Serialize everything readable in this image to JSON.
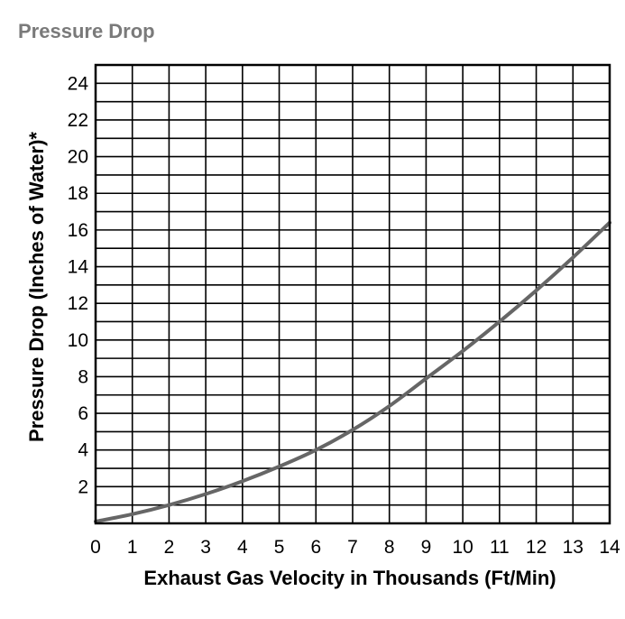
{
  "page": {
    "title": "Pressure Drop"
  },
  "chart_data": {
    "type": "line",
    "title": "Pressure Drop",
    "xlabel": "Exhaust Gas Velocity in Thousands (Ft/Min)",
    "ylabel": "Pressure Drop (Inches of Water)*",
    "xlim": [
      0,
      14
    ],
    "ylim": [
      0,
      25
    ],
    "x_ticks": [
      0,
      1,
      2,
      3,
      4,
      5,
      6,
      7,
      8,
      9,
      10,
      11,
      12,
      13,
      14
    ],
    "y_ticks": [
      2,
      4,
      6,
      8,
      10,
      12,
      14,
      16,
      18,
      20,
      22,
      24
    ],
    "grid": true,
    "series": [
      {
        "name": "",
        "color": "#666666",
        "x": [
          0,
          1,
          2,
          3,
          4,
          5,
          6,
          7,
          8,
          9,
          10,
          11,
          12,
          13,
          14
        ],
        "y": [
          0.1,
          0.5,
          1.0,
          1.6,
          2.3,
          3.1,
          4.0,
          5.1,
          6.4,
          7.9,
          9.4,
          11.0,
          12.7,
          14.5,
          16.4
        ]
      }
    ]
  }
}
